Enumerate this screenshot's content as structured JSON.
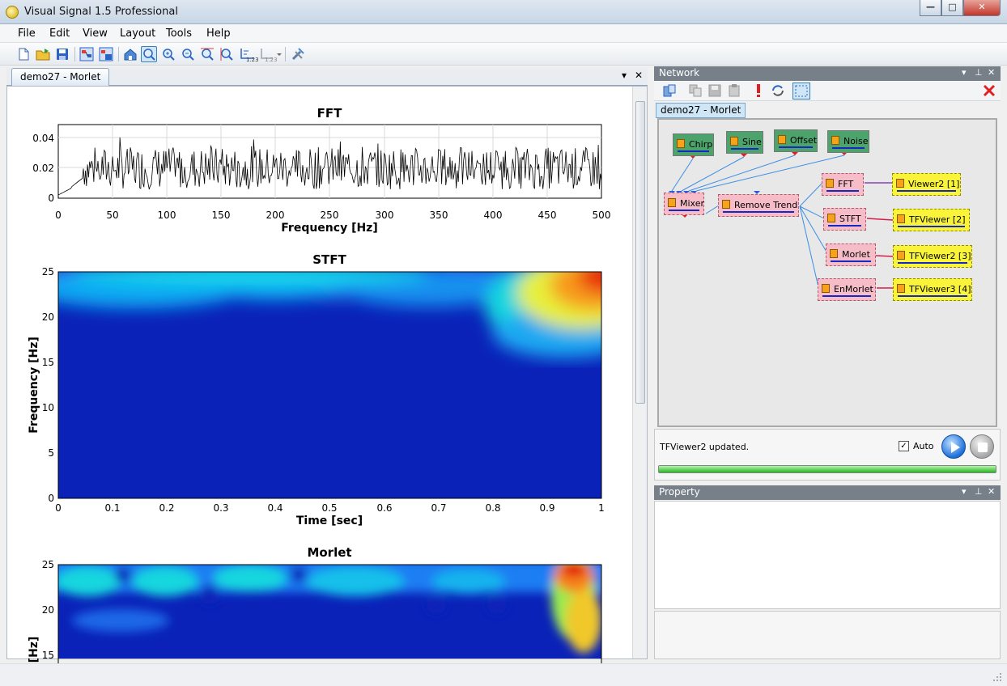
{
  "window": {
    "title": "Visual Signal 1.5 Professional",
    "minimize": "—",
    "maximize": "□",
    "close": "✕"
  },
  "menu": [
    "File",
    "Edit",
    "View",
    "Layout",
    "Tools",
    "Help"
  ],
  "toolbar_icons": [
    "new-icon",
    "open-icon",
    "save-icon",
    "network-icon",
    "network-save-icon",
    "home-icon",
    "zoom-area-icon",
    "zoom-in-icon",
    "zoom-out-icon",
    "zoom-x-icon",
    "zoom-y-icon",
    "tick-icon",
    "tick-dropdown-icon",
    "tools-icon"
  ],
  "doc_tab": {
    "label": "demo27 - Morlet",
    "dropdown": "▾",
    "close": "✕"
  },
  "plots": {
    "fft": {
      "title": "FFT",
      "xlabel": "Frequency [Hz]",
      "xticks": [
        "0",
        "50",
        "100",
        "150",
        "200",
        "250",
        "300",
        "350",
        "400",
        "450",
        "500"
      ],
      "yticks": [
        "0",
        "0.02",
        "0.04"
      ]
    },
    "stft": {
      "title": "STFT",
      "xlabel": "Time [sec]",
      "ylabel": "Frequency [Hz]",
      "xticks": [
        "0",
        "0.1",
        "0.2",
        "0.3",
        "0.4",
        "0.5",
        "0.6",
        "0.7",
        "0.8",
        "0.9",
        "1"
      ],
      "yticks": [
        "0",
        "5",
        "10",
        "15",
        "20",
        "25"
      ]
    },
    "morlet": {
      "title": "Morlet",
      "ylabel": "[Hz]",
      "yticks": [
        "15",
        "20",
        "25"
      ]
    }
  },
  "network": {
    "header": "Network",
    "tab": "demo27 - Morlet",
    "nodes": [
      {
        "id": "chirp",
        "label": "Chirp",
        "kind": "source"
      },
      {
        "id": "sine",
        "label": "Sine",
        "kind": "source"
      },
      {
        "id": "offset",
        "label": "Offset",
        "kind": "source"
      },
      {
        "id": "noise",
        "label": "Noise",
        "kind": "source"
      },
      {
        "id": "mixer",
        "label": "Mixer",
        "kind": "process"
      },
      {
        "id": "removetrend",
        "label": "Remove Trend",
        "kind": "process"
      },
      {
        "id": "fft",
        "label": "FFT",
        "kind": "process"
      },
      {
        "id": "stft",
        "label": "STFT",
        "kind": "process"
      },
      {
        "id": "morlet",
        "label": "Morlet",
        "kind": "process"
      },
      {
        "id": "enmorlet",
        "label": "EnMorlet",
        "kind": "process"
      },
      {
        "id": "viewer2",
        "label": "Viewer2 [1]",
        "kind": "viewer"
      },
      {
        "id": "tfviewer",
        "label": "TFViewer [2]",
        "kind": "viewer"
      },
      {
        "id": "tfviewer2",
        "label": "TFViewer2 [3]",
        "kind": "viewer"
      },
      {
        "id": "tfviewer3",
        "label": "TFViewer3 [4]",
        "kind": "viewer"
      }
    ],
    "status": "TFViewer2 updated.",
    "auto_label": "Auto",
    "auto_checked": true,
    "progress": 1.0
  },
  "property": {
    "header": "Property"
  },
  "panel_controls": {
    "dropdown": "▾",
    "pin": "⊥",
    "close": "✕"
  },
  "colors": {
    "source_node": "#4ca46c",
    "process_node": "#f6bdc9",
    "viewer_node": "#f9f43a"
  }
}
